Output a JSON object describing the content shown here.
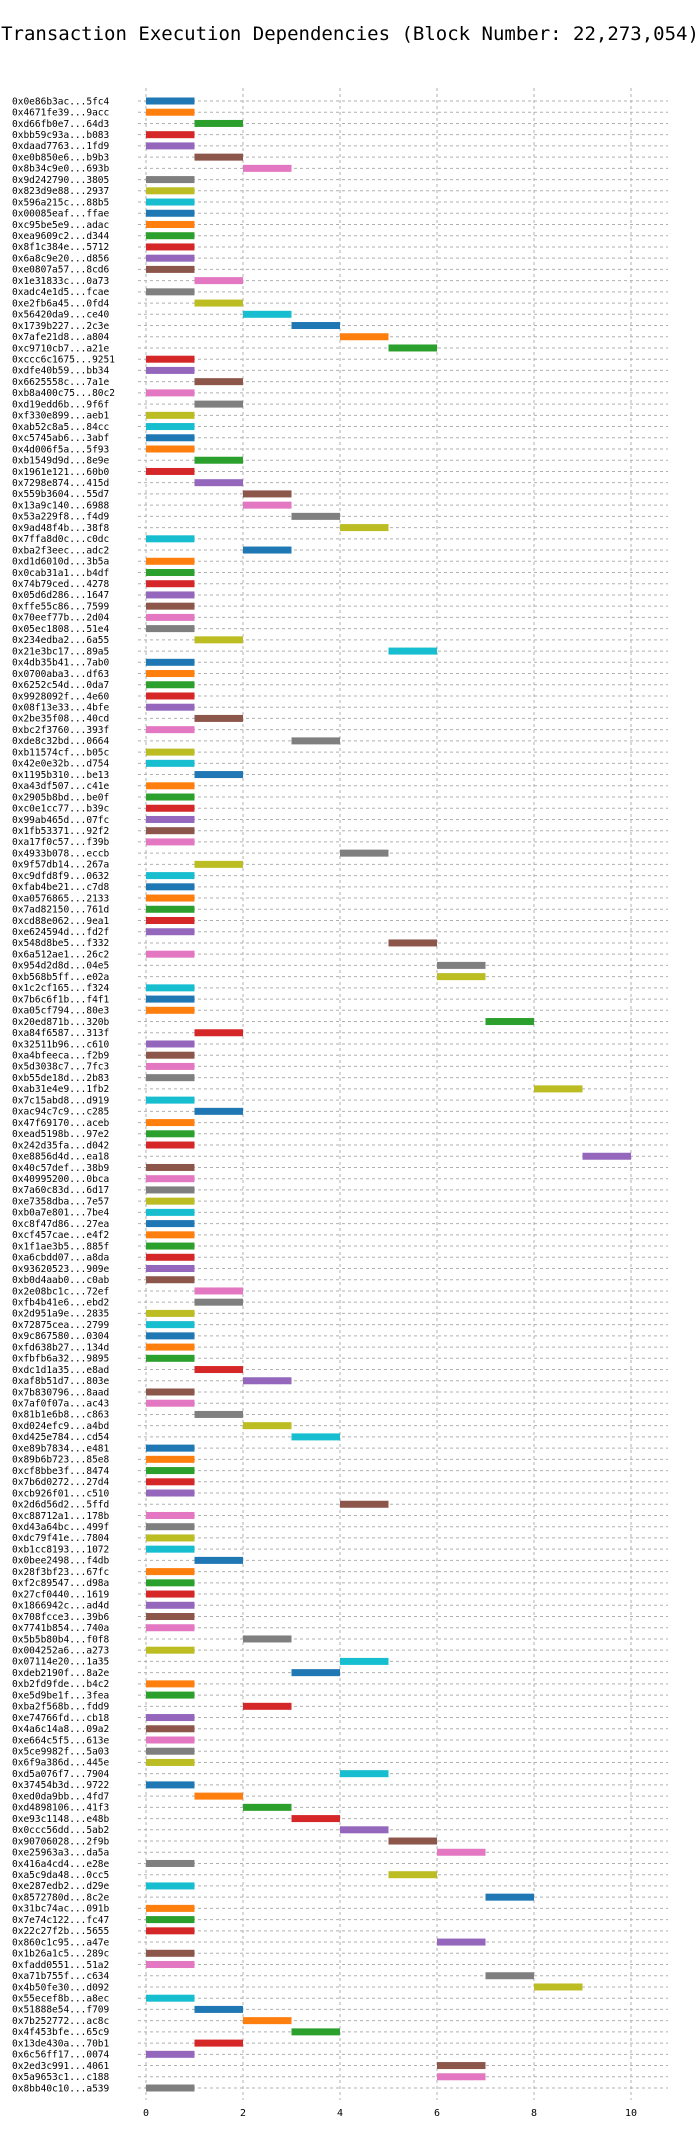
{
  "chart_data": {
    "type": "bar",
    "orientation": "horizontal",
    "title": "Transaction Execution Dependencies (Block Number: 22,273,054)",
    "xlabel": "",
    "ylabel": "",
    "xlim": [
      0,
      10.5
    ],
    "xticks": [
      0,
      2,
      4,
      6,
      8,
      10
    ],
    "grid": true,
    "palette": [
      "#1f77b4",
      "#ff7f0e",
      "#2ca02c",
      "#d62728",
      "#9467bd",
      "#8c564b",
      "#e377c2",
      "#7f7f7f",
      "#bcbd22",
      "#17becf"
    ],
    "transactions": [
      {
        "label": "0x0e86b3ac...5fc4",
        "start": 0,
        "end": 1
      },
      {
        "label": "0x4671fe39...9acc",
        "start": 0,
        "end": 1
      },
      {
        "label": "0xd66fb0e7...64d3",
        "start": 1,
        "end": 2
      },
      {
        "label": "0xbb59c93a...b083",
        "start": 0,
        "end": 1
      },
      {
        "label": "0xdaad7763...1fd9",
        "start": 0,
        "end": 1
      },
      {
        "label": "0xe0b850e6...b9b3",
        "start": 1,
        "end": 2
      },
      {
        "label": "0x8b34c9e0...693b",
        "start": 2,
        "end": 3
      },
      {
        "label": "0x9d242790...3805",
        "start": 0,
        "end": 1
      },
      {
        "label": "0x823d9e88...2937",
        "start": 0,
        "end": 1
      },
      {
        "label": "0x596a215c...88b5",
        "start": 0,
        "end": 1
      },
      {
        "label": "0x00085eaf...ffae",
        "start": 0,
        "end": 1
      },
      {
        "label": "0xc95be5e9...adac",
        "start": 0,
        "end": 1
      },
      {
        "label": "0xea9609c2...d344",
        "start": 0,
        "end": 1
      },
      {
        "label": "0x8f1c384e...5712",
        "start": 0,
        "end": 1
      },
      {
        "label": "0x6a8c9e20...d856",
        "start": 0,
        "end": 1
      },
      {
        "label": "0xe0807a57...8cd6",
        "start": 0,
        "end": 1
      },
      {
        "label": "0x1e31833c...0a73",
        "start": 1,
        "end": 2
      },
      {
        "label": "0xadc4e1d5...fcae",
        "start": 0,
        "end": 1
      },
      {
        "label": "0xe2fb6a45...0fd4",
        "start": 1,
        "end": 2
      },
      {
        "label": "0x56420da9...ce40",
        "start": 2,
        "end": 3
      },
      {
        "label": "0x1739b227...2c3e",
        "start": 3,
        "end": 4
      },
      {
        "label": "0x7afe21d8...a804",
        "start": 4,
        "end": 5
      },
      {
        "label": "0xc9710cb7...a21e",
        "start": 5,
        "end": 6
      },
      {
        "label": "0xccc6c1675...9251",
        "start": 0,
        "end": 1
      },
      {
        "label": "0xdfe40b59...bb34",
        "start": 0,
        "end": 1
      },
      {
        "label": "0x6625558c...7a1e",
        "start": 1,
        "end": 2
      },
      {
        "label": "0xb8a400c75...80c2",
        "start": 0,
        "end": 1
      },
      {
        "label": "0xd19edd6b...9f6f",
        "start": 1,
        "end": 2
      },
      {
        "label": "0xf330e899...aeb1",
        "start": 0,
        "end": 1
      },
      {
        "label": "0xab52c8a5...84cc",
        "start": 0,
        "end": 1
      },
      {
        "label": "0xc5745ab6...3abf",
        "start": 0,
        "end": 1
      },
      {
        "label": "0x4d006f5a...5f93",
        "start": 0,
        "end": 1
      },
      {
        "label": "0xb1549d9d...8e9e",
        "start": 1,
        "end": 2
      },
      {
        "label": "0x1961e121...60b0",
        "start": 0,
        "end": 1
      },
      {
        "label": "0x7298e874...415d",
        "start": 1,
        "end": 2
      },
      {
        "label": "0x559b3604...55d7",
        "start": 2,
        "end": 3
      },
      {
        "label": "0x13a9c140...6988",
        "start": 2,
        "end": 3
      },
      {
        "label": "0x53a229f8...f4d9",
        "start": 3,
        "end": 4
      },
      {
        "label": "0x9ad48f4b...38f8",
        "start": 4,
        "end": 5
      },
      {
        "label": "0x7ffa8d0c...c0dc",
        "start": 0,
        "end": 1
      },
      {
        "label": "0xba2f3eec...adc2",
        "start": 2,
        "end": 3
      },
      {
        "label": "0xd1d6010d...3b5a",
        "start": 0,
        "end": 1
      },
      {
        "label": "0x0cab31a1...b4df",
        "start": 0,
        "end": 1
      },
      {
        "label": "0x74b79ced...4278",
        "start": 0,
        "end": 1
      },
      {
        "label": "0x05d6d286...1647",
        "start": 0,
        "end": 1
      },
      {
        "label": "0xffe55c86...7599",
        "start": 0,
        "end": 1
      },
      {
        "label": "0x70eef77b...2d04",
        "start": 0,
        "end": 1
      },
      {
        "label": "0x05ec1808...51e4",
        "start": 0,
        "end": 1
      },
      {
        "label": "0x234edba2...6a55",
        "start": 1,
        "end": 2
      },
      {
        "label": "0x21e3bc17...89a5",
        "start": 5,
        "end": 6
      },
      {
        "label": "0x4db35b41...7ab0",
        "start": 0,
        "end": 1
      },
      {
        "label": "0x0700aba3...df63",
        "start": 0,
        "end": 1
      },
      {
        "label": "0x6252c54d...0da7",
        "start": 0,
        "end": 1
      },
      {
        "label": "0x9928092f...4e60",
        "start": 0,
        "end": 1
      },
      {
        "label": "0x08f13e33...4bfe",
        "start": 0,
        "end": 1
      },
      {
        "label": "0x2be35f08...40cd",
        "start": 1,
        "end": 2
      },
      {
        "label": "0xbc2f3760...393f",
        "start": 0,
        "end": 1
      },
      {
        "label": "0xde8c32bd...0664",
        "start": 3,
        "end": 4
      },
      {
        "label": "0xb11574cf...b05c",
        "start": 0,
        "end": 1
      },
      {
        "label": "0x42e0e32b...d754",
        "start": 0,
        "end": 1
      },
      {
        "label": "0x1195b310...be13",
        "start": 1,
        "end": 2
      },
      {
        "label": "0xa43df507...c41e",
        "start": 0,
        "end": 1
      },
      {
        "label": "0x2905b8bd...be0f",
        "start": 0,
        "end": 1
      },
      {
        "label": "0xc0e1cc77...b39c",
        "start": 0,
        "end": 1
      },
      {
        "label": "0x99ab465d...07fc",
        "start": 0,
        "end": 1
      },
      {
        "label": "0x1fb53371...92f2",
        "start": 0,
        "end": 1
      },
      {
        "label": "0xa17f0c57...f39b",
        "start": 0,
        "end": 1
      },
      {
        "label": "0x4933b078...eccb",
        "start": 4,
        "end": 5
      },
      {
        "label": "0x9f57db14...267a",
        "start": 1,
        "end": 2
      },
      {
        "label": "0xc9dfd8f9...0632",
        "start": 0,
        "end": 1
      },
      {
        "label": "0xfab4be21...c7d8",
        "start": 0,
        "end": 1
      },
      {
        "label": "0xa0576865...2133",
        "start": 0,
        "end": 1
      },
      {
        "label": "0x7ad82150...761d",
        "start": 0,
        "end": 1
      },
      {
        "label": "0xcd88e062...9ea1",
        "start": 0,
        "end": 1
      },
      {
        "label": "0xe624594d...fd2f",
        "start": 0,
        "end": 1
      },
      {
        "label": "0x548d8be5...f332",
        "start": 5,
        "end": 6
      },
      {
        "label": "0x6a512ae1...26c2",
        "start": 0,
        "end": 1
      },
      {
        "label": "0x954d2d8d...04e5",
        "start": 6,
        "end": 7
      },
      {
        "label": "0xb568b5ff...e02a",
        "start": 6,
        "end": 7
      },
      {
        "label": "0x1c2cf165...f324",
        "start": 0,
        "end": 1
      },
      {
        "label": "0x7b6c6f1b...f4f1",
        "start": 0,
        "end": 1
      },
      {
        "label": "0xa05cf794...80e3",
        "start": 0,
        "end": 1
      },
      {
        "label": "0x20ed871b...320b",
        "start": 7,
        "end": 8
      },
      {
        "label": "0xa84f6587...313f",
        "start": 1,
        "end": 2
      },
      {
        "label": "0x32511b96...c610",
        "start": 0,
        "end": 1
      },
      {
        "label": "0xa4bfeeca...f2b9",
        "start": 0,
        "end": 1
      },
      {
        "label": "0x5d3038c7...7fc3",
        "start": 0,
        "end": 1
      },
      {
        "label": "0xb55de18d...2b83",
        "start": 0,
        "end": 1
      },
      {
        "label": "0xab31e4e9...1fb2",
        "start": 8,
        "end": 9
      },
      {
        "label": "0x7c15abd8...d919",
        "start": 0,
        "end": 1
      },
      {
        "label": "0xac94c7c9...c285",
        "start": 1,
        "end": 2
      },
      {
        "label": "0x47f69170...aceb",
        "start": 0,
        "end": 1
      },
      {
        "label": "0xead5198b...97e2",
        "start": 0,
        "end": 1
      },
      {
        "label": "0x242d35fa...d042",
        "start": 0,
        "end": 1
      },
      {
        "label": "0xe8856d4d...ea18",
        "start": 9,
        "end": 10
      },
      {
        "label": "0x40c57def...38b9",
        "start": 0,
        "end": 1
      },
      {
        "label": "0x40995200...0bca",
        "start": 0,
        "end": 1
      },
      {
        "label": "0x7a60c83d...6d17",
        "start": 0,
        "end": 1
      },
      {
        "label": "0xe7358dba...7e57",
        "start": 0,
        "end": 1
      },
      {
        "label": "0xb0a7e801...7be4",
        "start": 0,
        "end": 1
      },
      {
        "label": "0xc8f47d86...27ea",
        "start": 0,
        "end": 1
      },
      {
        "label": "0xcf457cae...e4f2",
        "start": 0,
        "end": 1
      },
      {
        "label": "0x1f1ae3b5...885f",
        "start": 0,
        "end": 1
      },
      {
        "label": "0xa6cbdd07...a8da",
        "start": 0,
        "end": 1
      },
      {
        "label": "0x93620523...909e",
        "start": 0,
        "end": 1
      },
      {
        "label": "0xb0d4aab0...c0ab",
        "start": 0,
        "end": 1
      },
      {
        "label": "0x2e08bc1c...72ef",
        "start": 1,
        "end": 2
      },
      {
        "label": "0xfb4b41e6...ebd2",
        "start": 1,
        "end": 2
      },
      {
        "label": "0x2d951a9e...2835",
        "start": 0,
        "end": 1
      },
      {
        "label": "0x72875cea...2799",
        "start": 0,
        "end": 1
      },
      {
        "label": "0x9c867580...0304",
        "start": 0,
        "end": 1
      },
      {
        "label": "0xfd638b27...134d",
        "start": 0,
        "end": 1
      },
      {
        "label": "0xfbfb6a32...9895",
        "start": 0,
        "end": 1
      },
      {
        "label": "0xdc1d1a35...e8ad",
        "start": 1,
        "end": 2
      },
      {
        "label": "0xaf8b51d7...803e",
        "start": 2,
        "end": 3
      },
      {
        "label": "0x7b830796...8aad",
        "start": 0,
        "end": 1
      },
      {
        "label": "0x7af0f07a...ac43",
        "start": 0,
        "end": 1
      },
      {
        "label": "0x81b1e6b8...c863",
        "start": 1,
        "end": 2
      },
      {
        "label": "0xd024efc9...a4bd",
        "start": 2,
        "end": 3
      },
      {
        "label": "0xd425e784...cd54",
        "start": 3,
        "end": 4
      },
      {
        "label": "0xe89b7834...e481",
        "start": 0,
        "end": 1
      },
      {
        "label": "0x89b6b723...85e8",
        "start": 0,
        "end": 1
      },
      {
        "label": "0xcf8bbe3f...8474",
        "start": 0,
        "end": 1
      },
      {
        "label": "0x7b6d0272...27d4",
        "start": 0,
        "end": 1
      },
      {
        "label": "0xcb926f01...c510",
        "start": 0,
        "end": 1
      },
      {
        "label": "0x2d6d56d2...5ffd",
        "start": 4,
        "end": 5
      },
      {
        "label": "0xc88712a1...178b",
        "start": 0,
        "end": 1
      },
      {
        "label": "0xd43a64bc...499f",
        "start": 0,
        "end": 1
      },
      {
        "label": "0xdc79f41e...7804",
        "start": 0,
        "end": 1
      },
      {
        "label": "0xb1cc8193...1072",
        "start": 0,
        "end": 1
      },
      {
        "label": "0x0bee2498...f4db",
        "start": 1,
        "end": 2
      },
      {
        "label": "0x28f3bf23...67fc",
        "start": 0,
        "end": 1
      },
      {
        "label": "0xf2c89547...d98a",
        "start": 0,
        "end": 1
      },
      {
        "label": "0x27cf0440...1619",
        "start": 0,
        "end": 1
      },
      {
        "label": "0x1866942c...ad4d",
        "start": 0,
        "end": 1
      },
      {
        "label": "0x708fcce3...39b6",
        "start": 0,
        "end": 1
      },
      {
        "label": "0x7741b854...740a",
        "start": 0,
        "end": 1
      },
      {
        "label": "0x5b5b80b4...f0f8",
        "start": 2,
        "end": 3
      },
      {
        "label": "0x004252a6...a273",
        "start": 0,
        "end": 1
      },
      {
        "label": "0x07114e20...1a35",
        "start": 4,
        "end": 5
      },
      {
        "label": "0xdeb2190f...8a2e",
        "start": 3,
        "end": 4
      },
      {
        "label": "0xb2fd9fde...b4c2",
        "start": 0,
        "end": 1
      },
      {
        "label": "0xe5d9be1f...3fea",
        "start": 0,
        "end": 1
      },
      {
        "label": "0xba2f568b...fdd9",
        "start": 2,
        "end": 3
      },
      {
        "label": "0xe74766fd...cb18",
        "start": 0,
        "end": 1
      },
      {
        "label": "0x4a6c14a8...09a2",
        "start": 0,
        "end": 1
      },
      {
        "label": "0xe664c5f5...613e",
        "start": 0,
        "end": 1
      },
      {
        "label": "0x5ce9982f...5a03",
        "start": 0,
        "end": 1
      },
      {
        "label": "0x6f9a386d...445e",
        "start": 0,
        "end": 1
      },
      {
        "label": "0xd5a076f7...7904",
        "start": 4,
        "end": 5
      },
      {
        "label": "0x37454b3d...9722",
        "start": 0,
        "end": 1
      },
      {
        "label": "0xed0da9bb...4fd7",
        "start": 1,
        "end": 2
      },
      {
        "label": "0xd4898106...41f3",
        "start": 2,
        "end": 3
      },
      {
        "label": "0xe93c1148...e48b",
        "start": 3,
        "end": 4
      },
      {
        "label": "0x0ccc56dd...5ab2",
        "start": 4,
        "end": 5
      },
      {
        "label": "0x90706028...2f9b",
        "start": 5,
        "end": 6
      },
      {
        "label": "0xe25963a3...da5a",
        "start": 6,
        "end": 7
      },
      {
        "label": "0x416a4cd4...e28e",
        "start": 0,
        "end": 1
      },
      {
        "label": "0xa5c9da48...0cc5",
        "start": 5,
        "end": 6
      },
      {
        "label": "0xe287edb2...d29e",
        "start": 0,
        "end": 1
      },
      {
        "label": "0x8572780d...8c2e",
        "start": 7,
        "end": 8
      },
      {
        "label": "0x31bc74ac...091b",
        "start": 0,
        "end": 1
      },
      {
        "label": "0x7e74c122...fc47",
        "start": 0,
        "end": 1
      },
      {
        "label": "0x22c27f2b...5655",
        "start": 0,
        "end": 1
      },
      {
        "label": "0x860c1c95...a47e",
        "start": 6,
        "end": 7
      },
      {
        "label": "0x1b26a1c5...289c",
        "start": 0,
        "end": 1
      },
      {
        "label": "0xfadd0551...51a2",
        "start": 0,
        "end": 1
      },
      {
        "label": "0xa71b755f...c634",
        "start": 7,
        "end": 8
      },
      {
        "label": "0x4b50fe30...d092",
        "start": 8,
        "end": 9
      },
      {
        "label": "0x55ecef8b...a8ec",
        "start": 0,
        "end": 1
      },
      {
        "label": "0x51888e54...f709",
        "start": 1,
        "end": 2
      },
      {
        "label": "0x7b252772...ac8c",
        "start": 2,
        "end": 3
      },
      {
        "label": "0x4f453bfe...65c9",
        "start": 3,
        "end": 4
      },
      {
        "label": "0x13de430a...70b1",
        "start": 1,
        "end": 2
      },
      {
        "label": "0x6c56ff17...0074",
        "start": 0,
        "end": 1
      },
      {
        "label": "0x2ed3c991...4061",
        "start": 6,
        "end": 7
      },
      {
        "label": "0x5a9653c1...c188",
        "start": 6,
        "end": 7
      },
      {
        "label": "0x8bb40c10...a539",
        "start": 0,
        "end": 1
      }
    ]
  }
}
